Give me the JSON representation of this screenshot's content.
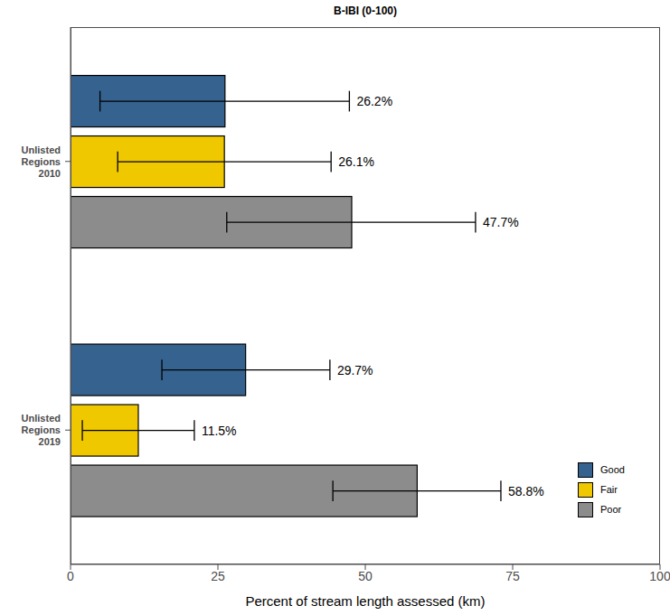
{
  "chart_data": {
    "type": "bar",
    "title": "B-IBI (0-100)",
    "orientation": "horizontal",
    "categories": [
      "Unlisted Regions 2010",
      "Unlisted Regions 2019"
    ],
    "series": [
      {
        "name": "Good",
        "color": "#35628e",
        "values": [
          26.2,
          29.7
        ],
        "value_labels": [
          "26.2%",
          "29.7%"
        ],
        "error_low": [
          5,
          15.5
        ],
        "error_high": [
          47.3,
          44
        ]
      },
      {
        "name": "Fair",
        "color": "#f0c800",
        "values": [
          26.1,
          11.5
        ],
        "value_labels": [
          "26.1%",
          "11.5%"
        ],
        "error_low": [
          8,
          2
        ],
        "error_high": [
          44.2,
          21
        ]
      },
      {
        "name": "Poor",
        "color": "#8c8c8c",
        "values": [
          47.7,
          58.8
        ],
        "value_labels": [
          "47.7%",
          "58.8%"
        ],
        "error_low": [
          26.5,
          44.5
        ],
        "error_high": [
          68.7,
          73
        ]
      }
    ],
    "xlabel": "Percent of stream length assessed (km)",
    "xlim": [
      0,
      100
    ],
    "xticks": [
      0,
      25,
      50,
      75,
      100
    ],
    "grid": false,
    "legend": "bottom right",
    "data_labels": true
  }
}
